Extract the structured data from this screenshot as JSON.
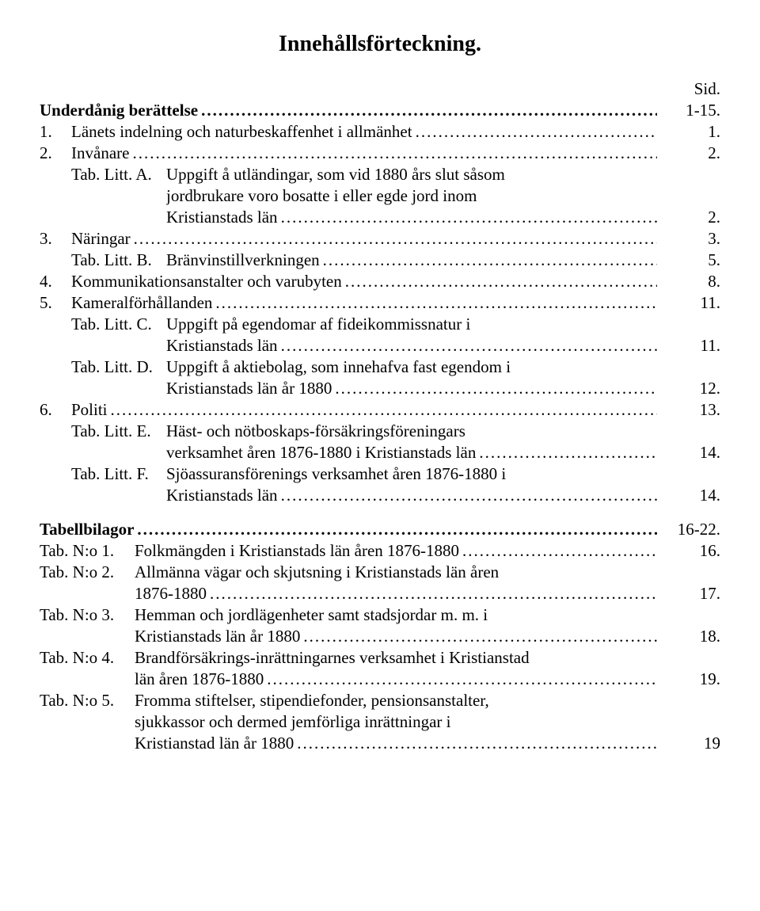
{
  "title": "Innehållsförteckning.",
  "sid_label": "Sid.",
  "section1": {
    "heading": {
      "label": "Underdånig berättelse",
      "page": "1-15."
    },
    "items": [
      {
        "num": "1.",
        "text": "Länets indelning och naturbeskaffenhet i allmänhet",
        "page": "1."
      },
      {
        "num": "2.",
        "text": "Invånare",
        "page": "2."
      },
      {
        "num": "",
        "sub": "Tab. Litt. A.",
        "text": "Uppgift å utländingar, som vid 1880 års slut såsom",
        "page": ""
      },
      {
        "cont": true,
        "text": "jordbrukare voro bosatte i eller egde jord inom",
        "page": ""
      },
      {
        "cont": true,
        "text": "Kristianstads län",
        "page": "2."
      },
      {
        "num": "3.",
        "text": "Näringar",
        "page": "3."
      },
      {
        "num": "",
        "sub": "Tab. Litt. B.",
        "text": "Bränvinstillverkningen",
        "page": "5."
      },
      {
        "num": "4.",
        "text": "Kommunikationsanstalter och varubyten",
        "page": "8."
      },
      {
        "num": "5.",
        "text": "Kameralförhållanden",
        "page": "11."
      },
      {
        "num": "",
        "sub": "Tab. Litt. C.",
        "text": "Uppgift på egendomar af fideikommissnatur i",
        "page": ""
      },
      {
        "cont": true,
        "text": "Kristianstads län",
        "page": "11."
      },
      {
        "num": "",
        "sub": "Tab. Litt. D.",
        "text": "Uppgift å aktiebolag, som innehafva fast egendom i",
        "page": ""
      },
      {
        "cont": true,
        "text": "Kristianstads län år 1880",
        "page": "12."
      },
      {
        "num": "6.",
        "text": "Politi",
        "page": "13."
      },
      {
        "num": "",
        "sub": "Tab. Litt. E.",
        "text": "Häst- och nötboskaps-försäkringsföreningars",
        "page": ""
      },
      {
        "cont": true,
        "text": "verksamhet åren 1876-1880 i Kristianstads län",
        "page": "14."
      },
      {
        "num": "",
        "sub": "Tab. Litt. F.",
        "text": "Sjöassuransförenings verksamhet åren 1876-1880 i",
        "page": ""
      },
      {
        "cont": true,
        "text": "Kristianstads län",
        "page": "14."
      }
    ]
  },
  "section2": {
    "heading": {
      "label": "Tabellbilagor",
      "page": "16-22."
    },
    "items": [
      {
        "sub": "Tab. N:o 1.",
        "text": "Folkmängden i Kristianstads län åren 1876-1880",
        "page": "16."
      },
      {
        "sub": "Tab. N:o 2.",
        "text": "Allmänna vägar och skjutsning i Kristianstads län åren",
        "page": ""
      },
      {
        "cont": true,
        "text": "1876-1880",
        "page": "17."
      },
      {
        "sub": "Tab. N:o 3.",
        "text": "Hemman och jordlägenheter samt stadsjordar m. m. i",
        "page": ""
      },
      {
        "cont": true,
        "text": "Kristianstads län år 1880",
        "page": "18."
      },
      {
        "sub": "Tab. N:o 4.",
        "text": "Brandförsäkrings-inrättningarnes verksamhet i Kristianstad",
        "page": ""
      },
      {
        "cont": true,
        "text": "län åren 1876-1880",
        "page": "19."
      },
      {
        "sub": "Tab. N:o 5.",
        "text": "Fromma stiftelser, stipendiefonder, pensionsanstalter,",
        "page": ""
      },
      {
        "cont": true,
        "text": "sjukkassor och dermed jemförliga inrättningar i",
        "page": ""
      },
      {
        "cont": true,
        "text": "Kristianstad län år 1880",
        "page": "19"
      }
    ]
  }
}
